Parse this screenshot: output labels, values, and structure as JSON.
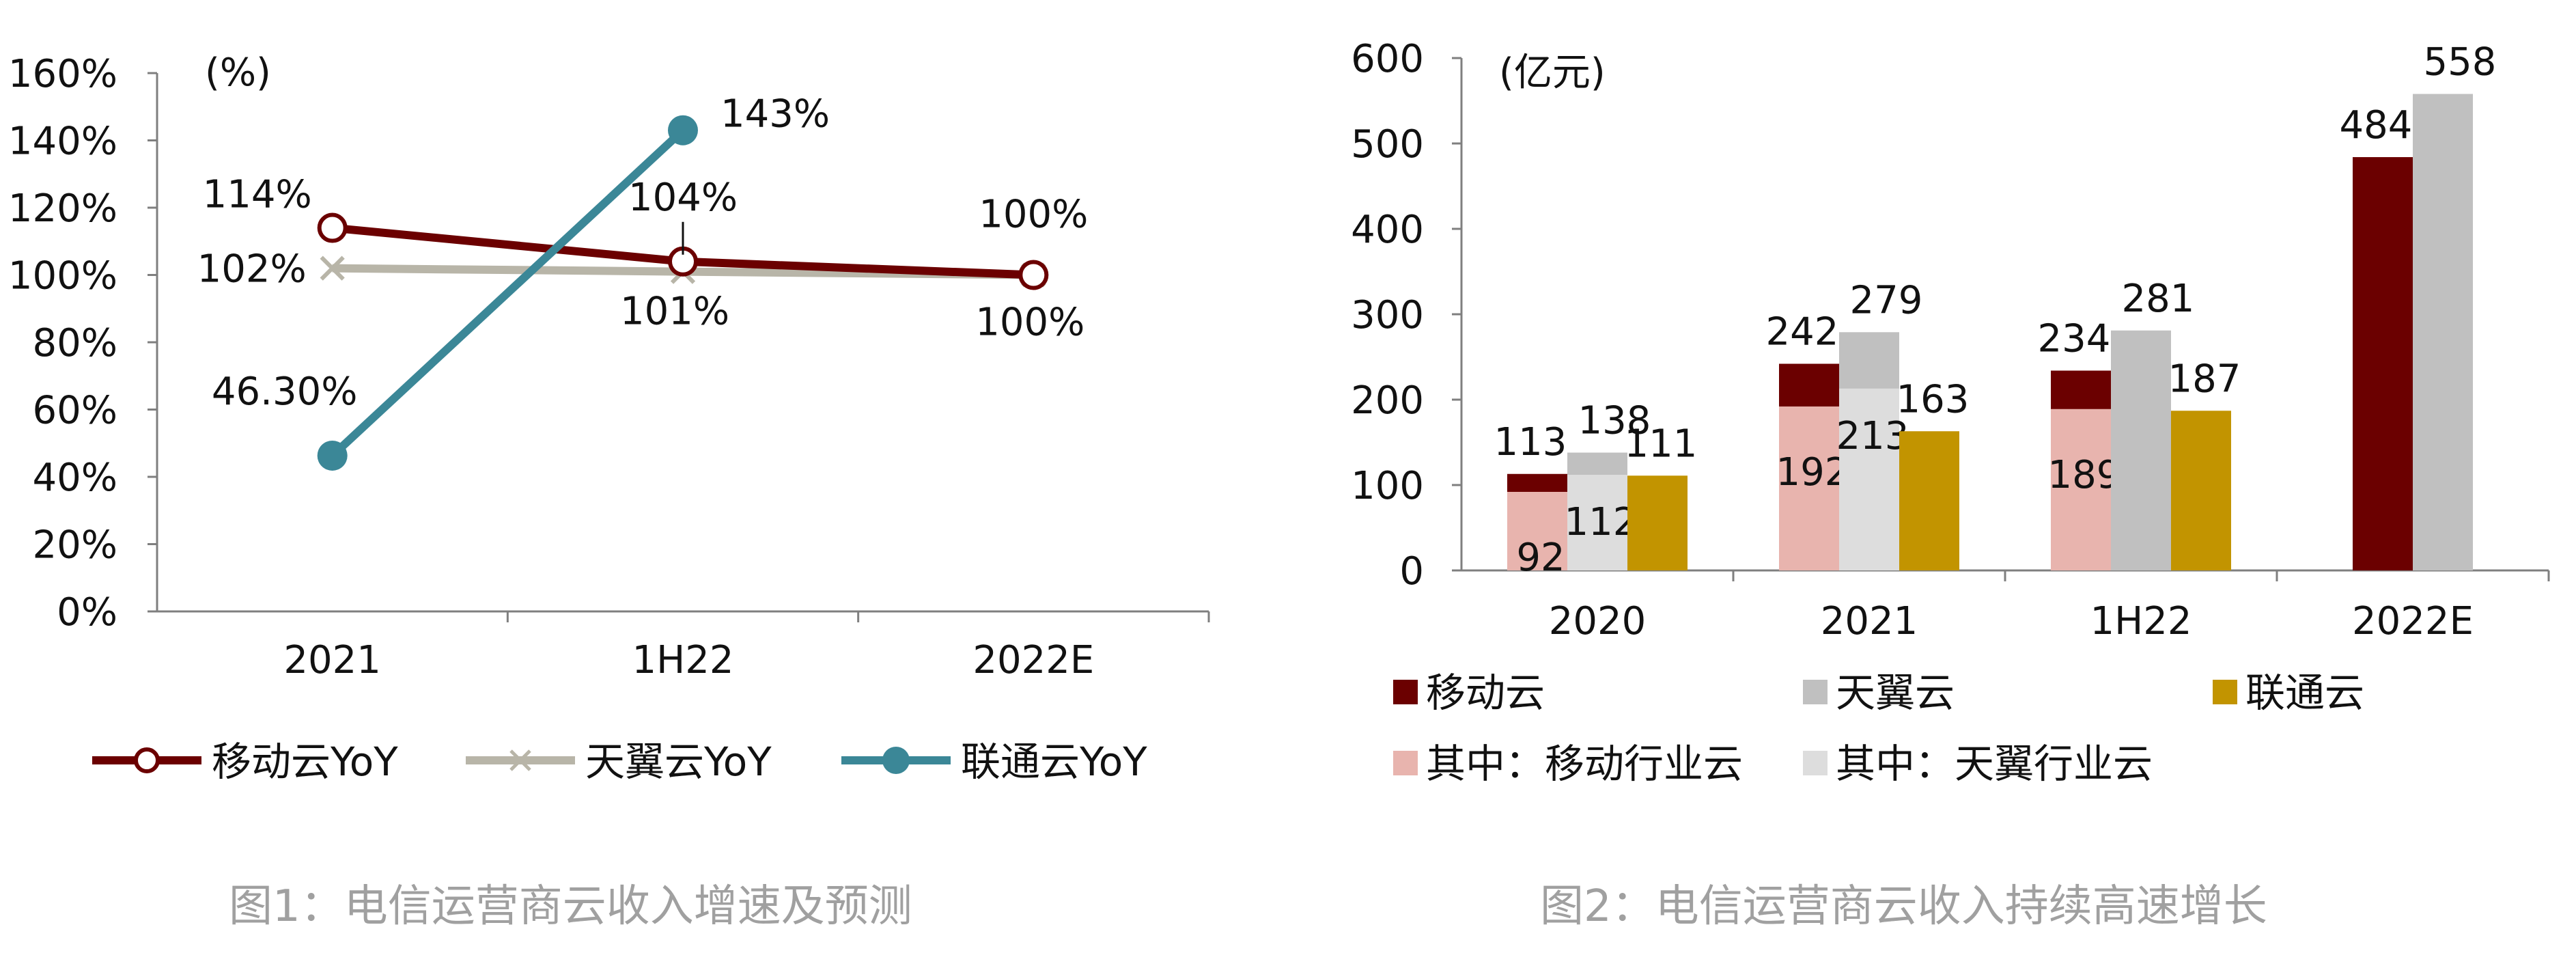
{
  "figure1": {
    "caption": "图1：电信运营商云收入增速及预测",
    "chart_data": {
      "type": "line",
      "unit_label": "(%)",
      "categories": [
        "2021",
        "1H22",
        "2022E"
      ],
      "ylim": [
        0,
        160
      ],
      "yticks": [
        "0%",
        "20%",
        "40%",
        "60%",
        "80%",
        "100%",
        "120%",
        "140%",
        "160%"
      ],
      "legend_position": "bottom",
      "colors": {
        "移动云YoY": "#6b0000",
        "天翼云YoY": "#b8b5a8",
        "联通云YoY": "#3b8797"
      },
      "series": [
        {
          "name": "移动云YoY",
          "values": [
            114,
            104,
            100
          ],
          "labels": [
            "114%",
            "104%",
            "100%"
          ]
        },
        {
          "name": "天翼云YoY",
          "values": [
            102,
            101,
            100
          ],
          "labels": [
            "102%",
            "101%",
            "100%"
          ]
        },
        {
          "name": "联通云YoY",
          "values": [
            46.3,
            143,
            null
          ],
          "labels": [
            "46.30%",
            "143%",
            ""
          ]
        }
      ]
    }
  },
  "figure2": {
    "caption": "图2：电信运营商云收入持续高速增长",
    "chart_data": {
      "type": "bar",
      "unit_label": "(亿元)",
      "categories": [
        "2020",
        "2021",
        "1H22",
        "2022E"
      ],
      "ylim": [
        0,
        600
      ],
      "yticks": [
        "0",
        "100",
        "200",
        "300",
        "400",
        "500",
        "600"
      ],
      "legend_position": "bottom",
      "colors": {
        "移动云": "#6b0000",
        "天翼云": "#c0c0c0",
        "联通云": "#c29400",
        "其中：移动行业云": "#e8b4ae",
        "其中：天翼行业云": "#dddddd"
      },
      "legend": [
        "移动云",
        "天翼云",
        "联通云",
        "其中：移动行业云",
        "其中：天翼行业云"
      ],
      "series": [
        {
          "name": "移动云",
          "values": [
            113,
            242,
            234,
            484
          ]
        },
        {
          "name": "其中：移动行业云",
          "values": [
            92,
            192,
            189,
            null
          ]
        },
        {
          "name": "天翼云",
          "values": [
            138,
            279,
            281,
            558
          ]
        },
        {
          "name": "其中：天翼行业云",
          "values": [
            112,
            213,
            null,
            null
          ]
        },
        {
          "name": "联通云",
          "values": [
            111,
            163,
            187,
            null
          ]
        }
      ]
    }
  }
}
